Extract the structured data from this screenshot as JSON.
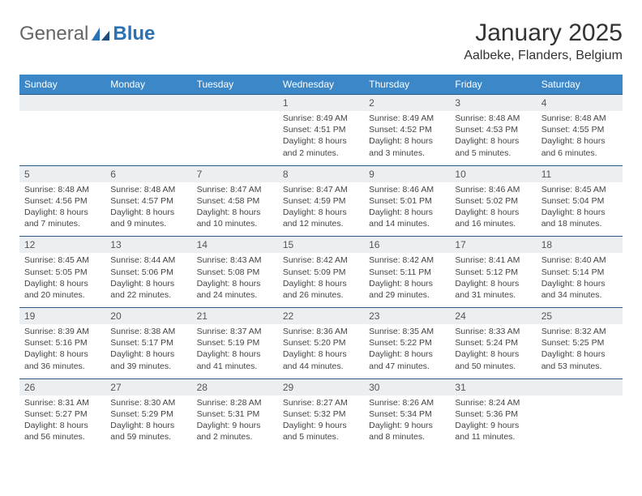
{
  "brand": {
    "part1": "General",
    "part2": "Blue"
  },
  "title": "January 2025",
  "location": "Aalbeke, Flanders, Belgium",
  "colors": {
    "header_bg": "#3b87c8",
    "header_text": "#ffffff",
    "row_border": "#2c5a86",
    "daynum_bg": "#eceff1",
    "text": "#333333",
    "logo_blue": "#2a72b5"
  },
  "weekdays": [
    "Sunday",
    "Monday",
    "Tuesday",
    "Wednesday",
    "Thursday",
    "Friday",
    "Saturday"
  ],
  "weeks": [
    [
      null,
      null,
      null,
      {
        "n": "1",
        "sr": "Sunrise: 8:49 AM",
        "ss": "Sunset: 4:51 PM",
        "d1": "Daylight: 8 hours",
        "d2": "and 2 minutes."
      },
      {
        "n": "2",
        "sr": "Sunrise: 8:49 AM",
        "ss": "Sunset: 4:52 PM",
        "d1": "Daylight: 8 hours",
        "d2": "and 3 minutes."
      },
      {
        "n": "3",
        "sr": "Sunrise: 8:48 AM",
        "ss": "Sunset: 4:53 PM",
        "d1": "Daylight: 8 hours",
        "d2": "and 5 minutes."
      },
      {
        "n": "4",
        "sr": "Sunrise: 8:48 AM",
        "ss": "Sunset: 4:55 PM",
        "d1": "Daylight: 8 hours",
        "d2": "and 6 minutes."
      }
    ],
    [
      {
        "n": "5",
        "sr": "Sunrise: 8:48 AM",
        "ss": "Sunset: 4:56 PM",
        "d1": "Daylight: 8 hours",
        "d2": "and 7 minutes."
      },
      {
        "n": "6",
        "sr": "Sunrise: 8:48 AM",
        "ss": "Sunset: 4:57 PM",
        "d1": "Daylight: 8 hours",
        "d2": "and 9 minutes."
      },
      {
        "n": "7",
        "sr": "Sunrise: 8:47 AM",
        "ss": "Sunset: 4:58 PM",
        "d1": "Daylight: 8 hours",
        "d2": "and 10 minutes."
      },
      {
        "n": "8",
        "sr": "Sunrise: 8:47 AM",
        "ss": "Sunset: 4:59 PM",
        "d1": "Daylight: 8 hours",
        "d2": "and 12 minutes."
      },
      {
        "n": "9",
        "sr": "Sunrise: 8:46 AM",
        "ss": "Sunset: 5:01 PM",
        "d1": "Daylight: 8 hours",
        "d2": "and 14 minutes."
      },
      {
        "n": "10",
        "sr": "Sunrise: 8:46 AM",
        "ss": "Sunset: 5:02 PM",
        "d1": "Daylight: 8 hours",
        "d2": "and 16 minutes."
      },
      {
        "n": "11",
        "sr": "Sunrise: 8:45 AM",
        "ss": "Sunset: 5:04 PM",
        "d1": "Daylight: 8 hours",
        "d2": "and 18 minutes."
      }
    ],
    [
      {
        "n": "12",
        "sr": "Sunrise: 8:45 AM",
        "ss": "Sunset: 5:05 PM",
        "d1": "Daylight: 8 hours",
        "d2": "and 20 minutes."
      },
      {
        "n": "13",
        "sr": "Sunrise: 8:44 AM",
        "ss": "Sunset: 5:06 PM",
        "d1": "Daylight: 8 hours",
        "d2": "and 22 minutes."
      },
      {
        "n": "14",
        "sr": "Sunrise: 8:43 AM",
        "ss": "Sunset: 5:08 PM",
        "d1": "Daylight: 8 hours",
        "d2": "and 24 minutes."
      },
      {
        "n": "15",
        "sr": "Sunrise: 8:42 AM",
        "ss": "Sunset: 5:09 PM",
        "d1": "Daylight: 8 hours",
        "d2": "and 26 minutes."
      },
      {
        "n": "16",
        "sr": "Sunrise: 8:42 AM",
        "ss": "Sunset: 5:11 PM",
        "d1": "Daylight: 8 hours",
        "d2": "and 29 minutes."
      },
      {
        "n": "17",
        "sr": "Sunrise: 8:41 AM",
        "ss": "Sunset: 5:12 PM",
        "d1": "Daylight: 8 hours",
        "d2": "and 31 minutes."
      },
      {
        "n": "18",
        "sr": "Sunrise: 8:40 AM",
        "ss": "Sunset: 5:14 PM",
        "d1": "Daylight: 8 hours",
        "d2": "and 34 minutes."
      }
    ],
    [
      {
        "n": "19",
        "sr": "Sunrise: 8:39 AM",
        "ss": "Sunset: 5:16 PM",
        "d1": "Daylight: 8 hours",
        "d2": "and 36 minutes."
      },
      {
        "n": "20",
        "sr": "Sunrise: 8:38 AM",
        "ss": "Sunset: 5:17 PM",
        "d1": "Daylight: 8 hours",
        "d2": "and 39 minutes."
      },
      {
        "n": "21",
        "sr": "Sunrise: 8:37 AM",
        "ss": "Sunset: 5:19 PM",
        "d1": "Daylight: 8 hours",
        "d2": "and 41 minutes."
      },
      {
        "n": "22",
        "sr": "Sunrise: 8:36 AM",
        "ss": "Sunset: 5:20 PM",
        "d1": "Daylight: 8 hours",
        "d2": "and 44 minutes."
      },
      {
        "n": "23",
        "sr": "Sunrise: 8:35 AM",
        "ss": "Sunset: 5:22 PM",
        "d1": "Daylight: 8 hours",
        "d2": "and 47 minutes."
      },
      {
        "n": "24",
        "sr": "Sunrise: 8:33 AM",
        "ss": "Sunset: 5:24 PM",
        "d1": "Daylight: 8 hours",
        "d2": "and 50 minutes."
      },
      {
        "n": "25",
        "sr": "Sunrise: 8:32 AM",
        "ss": "Sunset: 5:25 PM",
        "d1": "Daylight: 8 hours",
        "d2": "and 53 minutes."
      }
    ],
    [
      {
        "n": "26",
        "sr": "Sunrise: 8:31 AM",
        "ss": "Sunset: 5:27 PM",
        "d1": "Daylight: 8 hours",
        "d2": "and 56 minutes."
      },
      {
        "n": "27",
        "sr": "Sunrise: 8:30 AM",
        "ss": "Sunset: 5:29 PM",
        "d1": "Daylight: 8 hours",
        "d2": "and 59 minutes."
      },
      {
        "n": "28",
        "sr": "Sunrise: 8:28 AM",
        "ss": "Sunset: 5:31 PM",
        "d1": "Daylight: 9 hours",
        "d2": "and 2 minutes."
      },
      {
        "n": "29",
        "sr": "Sunrise: 8:27 AM",
        "ss": "Sunset: 5:32 PM",
        "d1": "Daylight: 9 hours",
        "d2": "and 5 minutes."
      },
      {
        "n": "30",
        "sr": "Sunrise: 8:26 AM",
        "ss": "Sunset: 5:34 PM",
        "d1": "Daylight: 9 hours",
        "d2": "and 8 minutes."
      },
      {
        "n": "31",
        "sr": "Sunrise: 8:24 AM",
        "ss": "Sunset: 5:36 PM",
        "d1": "Daylight: 9 hours",
        "d2": "and 11 minutes."
      },
      null
    ]
  ]
}
